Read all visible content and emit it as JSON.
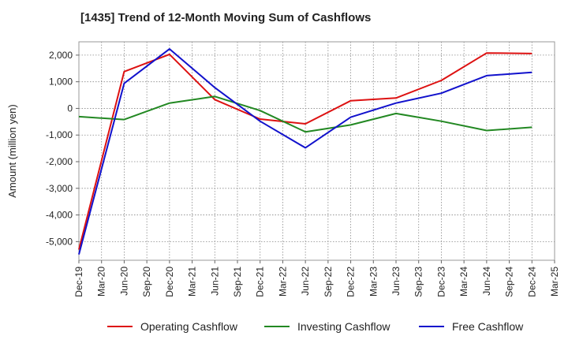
{
  "chart_data": {
    "type": "line",
    "title": "[1435]  Trend of 12-Month Moving Sum of Cashflows",
    "ylabel": "Amount (million yen)",
    "xlabel": "",
    "ylim": [
      -5700,
      2500
    ],
    "yticks": [
      2000,
      1000,
      0,
      -1000,
      -2000,
      -3000,
      -4000,
      -5000
    ],
    "ytick_labels": [
      "2,000",
      "1,000",
      "0",
      "-1,000",
      "-2,000",
      "-3,000",
      "-4,000",
      "-5,000"
    ],
    "categories": [
      "Dec-19",
      "Mar-20",
      "Jun-20",
      "Sep-20",
      "Dec-20",
      "Mar-21",
      "Jun-21",
      "Sep-21",
      "Dec-21",
      "Mar-22",
      "Jun-22",
      "Sep-22",
      "Dec-22",
      "Mar-23",
      "Jun-23",
      "Sep-23",
      "Dec-23",
      "Mar-24",
      "Jun-24",
      "Sep-24",
      "Dec-24",
      "Mar-25"
    ],
    "grid": true,
    "legend_position": "bottom",
    "series": [
      {
        "name": "Operating Cashflow",
        "color": "#dd1111",
        "values": [
          -5300,
          null,
          1380,
          null,
          2030,
          null,
          330,
          null,
          -400,
          null,
          -580,
          null,
          290,
          null,
          390,
          null,
          1050,
          null,
          2080,
          null,
          2060,
          null
        ]
      },
      {
        "name": "Investing Cashflow",
        "color": "#228822",
        "values": [
          -310,
          null,
          -420,
          null,
          200,
          null,
          450,
          null,
          -80,
          null,
          -880,
          null,
          -620,
          null,
          -190,
          null,
          -480,
          null,
          -830,
          null,
          -710,
          null
        ]
      },
      {
        "name": "Free Cashflow",
        "color": "#1111cc",
        "values": [
          -5480,
          null,
          940,
          null,
          2230,
          null,
          780,
          null,
          -480,
          null,
          -1480,
          null,
          -330,
          null,
          200,
          null,
          570,
          null,
          1230,
          null,
          1350,
          null
        ]
      }
    ]
  }
}
